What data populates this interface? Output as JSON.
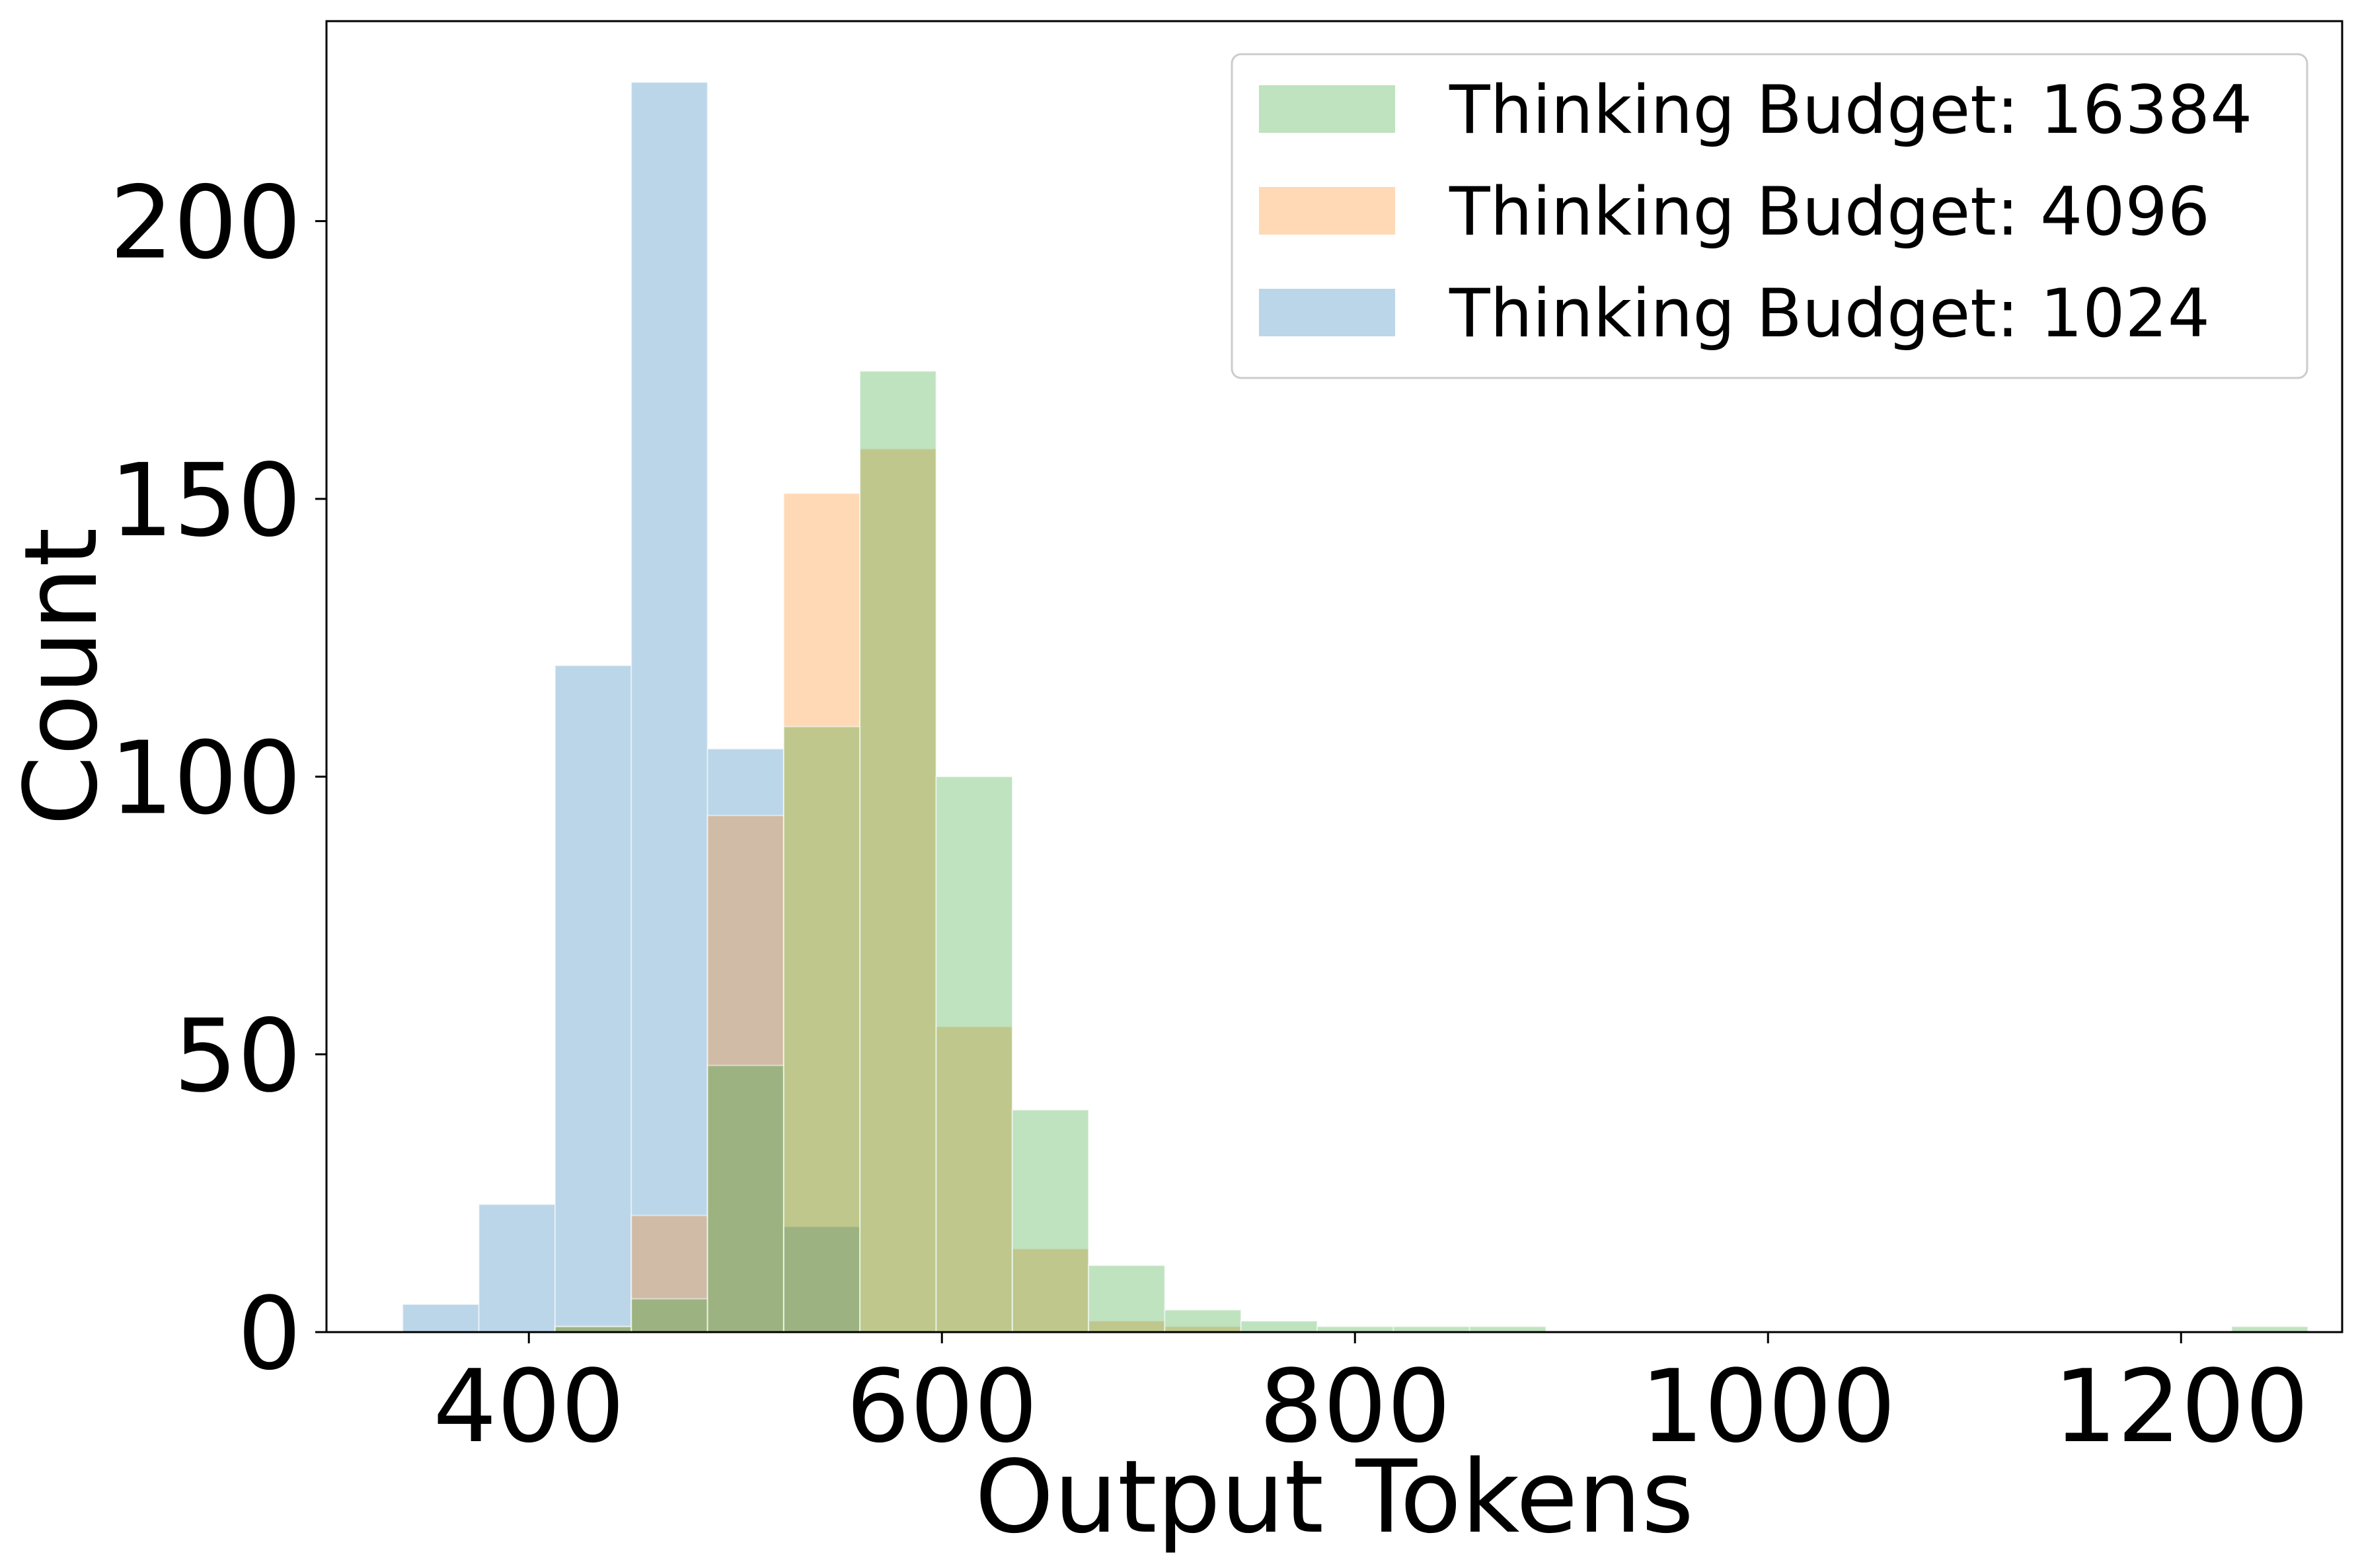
{
  "chart_data": {
    "type": "bar",
    "subtype": "overlapping histogram",
    "xlabel": "Output Tokens",
    "ylabel": "Count",
    "xlim": [
      302,
      1278
    ],
    "ylim": [
      0,
      236
    ],
    "xticks": [
      400,
      600,
      800,
      1000,
      1200
    ],
    "yticks": [
      0,
      50,
      100,
      150,
      200
    ],
    "grid": false,
    "legend_position": "top-right",
    "bin_edges": [
      338.9,
      375.8,
      412.7,
      449.6,
      486.5,
      523.4,
      560.3,
      597.2,
      634.1,
      671.0,
      707.9,
      744.8,
      781.7,
      818.6,
      855.5,
      892.4,
      929.3,
      966.2,
      1003.1,
      1040.0,
      1076.9,
      1113.8,
      1150.7,
      1187.6,
      1224.5,
      1261.4
    ],
    "series": [
      {
        "name": "Thinking Budget: 1024",
        "color": "#1f77b4",
        "values": [
          5,
          23,
          120,
          225,
          105,
          19,
          0,
          0,
          0,
          0,
          0,
          0,
          0,
          0,
          0,
          0,
          0,
          0,
          0,
          0,
          0,
          0,
          0,
          0,
          0
        ]
      },
      {
        "name": "Thinking Budget: 4096",
        "color": "#ff7f0e",
        "values": [
          0,
          0,
          1,
          21,
          93,
          151,
          159,
          55,
          15,
          2,
          1,
          0,
          0,
          0,
          0,
          0,
          0,
          0,
          0,
          0,
          0,
          0,
          0,
          0,
          0
        ]
      },
      {
        "name": "Thinking Budget: 16384",
        "color": "#2ca02c",
        "values": [
          0,
          0,
          1,
          6,
          48,
          109,
          173,
          100,
          40,
          12,
          4,
          2,
          1,
          1,
          1,
          0,
          0,
          0,
          0,
          0,
          0,
          0,
          0,
          0,
          1
        ]
      }
    ],
    "draw_order": [
      "Thinking Budget: 1024",
      "Thinking Budget: 4096",
      "Thinking Budget: 16384"
    ],
    "legend_order": [
      "Thinking Budget: 16384",
      "Thinking Budget: 4096",
      "Thinking Budget: 1024"
    ],
    "alpha": 0.3
  }
}
